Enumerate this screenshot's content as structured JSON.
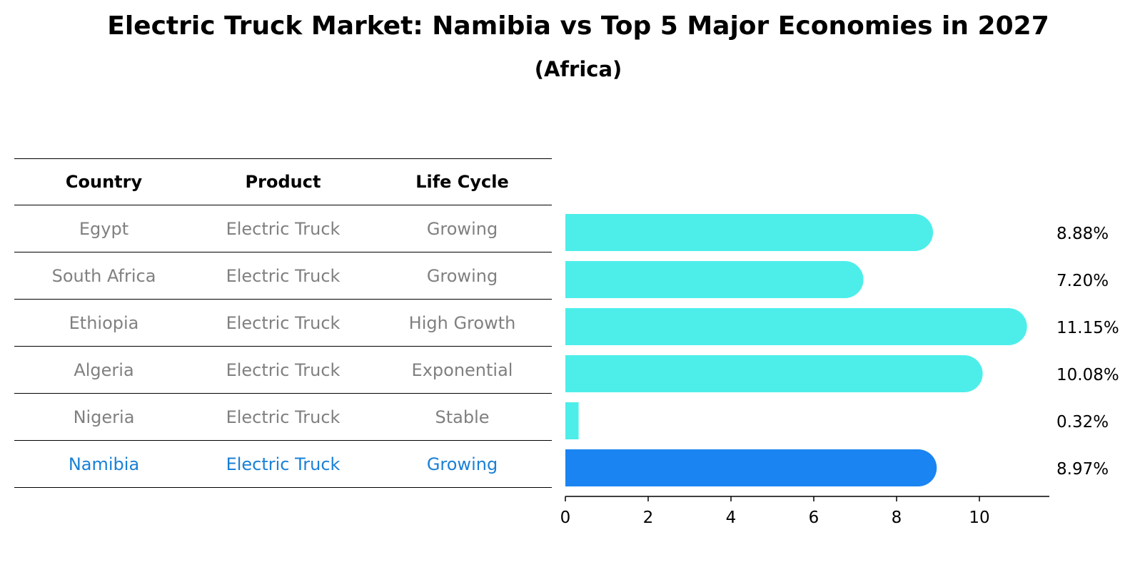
{
  "title": "Electric Truck Market: Namibia vs Top 5 Major Economies in 2027",
  "subtitle": "(Africa)",
  "table": {
    "headers": [
      "Country",
      "Product",
      "Life Cycle"
    ],
    "rows": [
      {
        "country": "Egypt",
        "product": "Electric Truck",
        "life_cycle": "Growing"
      },
      {
        "country": "South Africa",
        "product": "Electric Truck",
        "life_cycle": "Growing"
      },
      {
        "country": "Ethiopia",
        "product": "Electric Truck",
        "life_cycle": "High Growth"
      },
      {
        "country": "Algeria",
        "product": "Electric Truck",
        "life_cycle": "Exponential"
      },
      {
        "country": "Nigeria",
        "product": "Electric Truck",
        "life_cycle": "Stable"
      },
      {
        "country": "Namibia",
        "product": "Electric Truck",
        "life_cycle": "Growing"
      }
    ]
  },
  "colors": {
    "bar": "#4deeea",
    "highlight_bar": "#1a84f2",
    "highlight_text": "#1a80d6",
    "muted_text": "#808080"
  },
  "chart_data": {
    "type": "bar",
    "orientation": "horizontal",
    "categories": [
      "Egypt",
      "South Africa",
      "Ethiopia",
      "Algeria",
      "Nigeria",
      "Namibia"
    ],
    "values": [
      8.88,
      7.2,
      11.15,
      10.08,
      0.32,
      8.97
    ],
    "value_labels": [
      "8.88%",
      "7.20%",
      "11.15%",
      "10.08%",
      "0.32%",
      "8.97%"
    ],
    "highlight": "Namibia",
    "xlim": [
      0,
      11.7
    ],
    "xticks": [
      0,
      2,
      4,
      6,
      8,
      10
    ],
    "xtick_labels": [
      "0",
      "2",
      "4",
      "6",
      "8",
      "10"
    ],
    "grid": false
  }
}
